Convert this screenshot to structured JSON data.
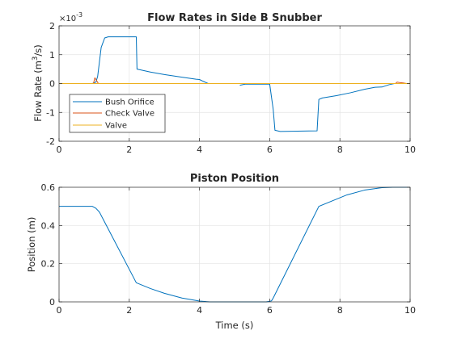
{
  "chart_data": [
    {
      "type": "line",
      "title": "Flow Rates in Side B Snubber",
      "ylabel_prefix": "Flow Rate (m",
      "ylabel_sup": "3",
      "ylabel_suffix": "/s)",
      "xlabel": "",
      "xlim": [
        0,
        10
      ],
      "ylim": [
        -2,
        2
      ],
      "y_exponent_label": "×10",
      "y_exponent_power": "-3",
      "xticks": [
        0,
        2,
        4,
        6,
        8,
        10
      ],
      "yticks": [
        -2,
        -1,
        0,
        1,
        2
      ],
      "grid": true,
      "legend_position": "lower-left",
      "series": [
        {
          "name": "Bush Orifice",
          "color": "#0072BD",
          "segments": [
            [
              [
                0,
                0
              ],
              [
                0.95,
                0
              ],
              [
                1.05,
                0.05
              ],
              [
                1.1,
                0.25
              ],
              [
                1.2,
                1.25
              ],
              [
                1.3,
                1.58
              ],
              [
                1.4,
                1.62
              ],
              [
                2.2,
                1.62
              ],
              [
                2.22,
                0.5
              ],
              [
                2.3,
                0.48
              ],
              [
                2.6,
                0.4
              ],
              [
                3.0,
                0.31
              ],
              [
                3.5,
                0.22
              ],
              [
                3.9,
                0.15
              ],
              [
                4.0,
                0.14
              ],
              [
                4.1,
                0.08
              ],
              [
                4.25,
                0.0
              ]
            ],
            [
              [
                5.15,
                -0.06
              ],
              [
                5.3,
                -0.02
              ],
              [
                5.95,
                -0.02
              ],
              [
                6.0,
                -0.02
              ],
              [
                6.1,
                -0.9
              ],
              [
                6.15,
                -1.62
              ],
              [
                6.3,
                -1.66
              ],
              [
                7.35,
                -1.64
              ],
              [
                7.4,
                -0.55
              ],
              [
                7.5,
                -0.5
              ],
              [
                7.9,
                -0.42
              ],
              [
                8.3,
                -0.32
              ],
              [
                8.7,
                -0.2
              ],
              [
                9.0,
                -0.13
              ],
              [
                9.2,
                -0.12
              ],
              [
                9.4,
                -0.04
              ],
              [
                9.55,
                0.0
              ]
            ]
          ]
        },
        {
          "name": "Check Valve",
          "color": "#D95319",
          "segments": [
            [
              [
                0,
                0
              ],
              [
                0.98,
                0
              ],
              [
                1.02,
                0.2
              ],
              [
                1.06,
                0.12
              ],
              [
                1.12,
                0.0
              ],
              [
                10,
                0.0
              ]
            ],
            [
              [
                9.58,
                0.0
              ],
              [
                9.63,
                0.05
              ],
              [
                9.72,
                0.03
              ],
              [
                9.8,
                0.02
              ],
              [
                9.9,
                0.0
              ]
            ]
          ]
        },
        {
          "name": "Valve",
          "color": "#EDB120",
          "segments": [
            [
              [
                0,
                0
              ],
              [
                10,
                0
              ]
            ]
          ]
        }
      ]
    },
    {
      "type": "line",
      "title": "Piston Position",
      "ylabel": "Position (m)",
      "xlabel": "Time (s)",
      "xlim": [
        0,
        10
      ],
      "ylim": [
        0,
        0.6
      ],
      "xticks": [
        0,
        2,
        4,
        6,
        8,
        10
      ],
      "yticks": [
        0,
        0.2,
        0.4,
        0.6
      ],
      "grid": true,
      "series": [
        {
          "color": "#0072BD",
          "segments": [
            [
              [
                0,
                0.5
              ],
              [
                0.95,
                0.5
              ],
              [
                1.05,
                0.49
              ],
              [
                1.15,
                0.47
              ],
              [
                2.2,
                0.1
              ],
              [
                2.6,
                0.07
              ],
              [
                3.0,
                0.045
              ],
              [
                3.5,
                0.02
              ],
              [
                4.0,
                0.004
              ],
              [
                4.3,
                0.0
              ],
              [
                5.9,
                0.0
              ],
              [
                6.05,
                0.005
              ],
              [
                6.1,
                0.02
              ],
              [
                7.4,
                0.5
              ],
              [
                7.8,
                0.53
              ],
              [
                8.2,
                0.56
              ],
              [
                8.7,
                0.585
              ],
              [
                9.2,
                0.598
              ],
              [
                9.5,
                0.6
              ],
              [
                10,
                0.6
              ]
            ]
          ]
        }
      ]
    }
  ]
}
